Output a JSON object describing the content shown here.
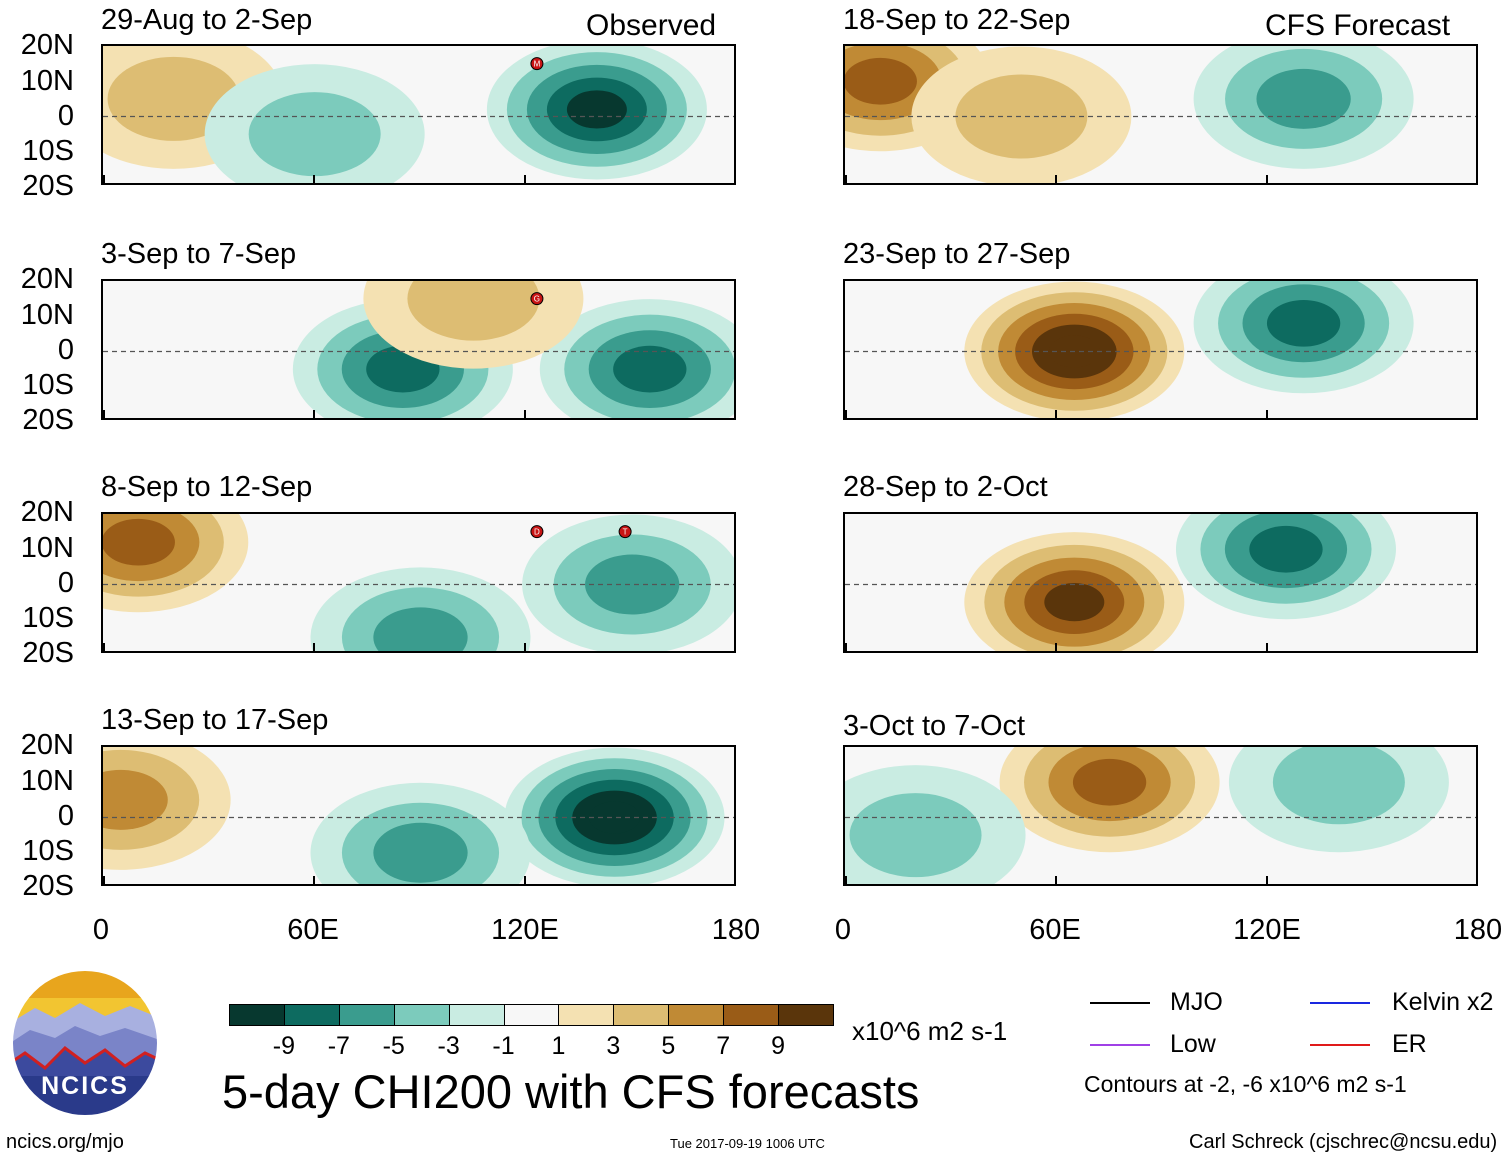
{
  "chart_data": {
    "type": "heatmap",
    "title": "5-day CHI200 with CFS forecasts",
    "units": "x10^6 m2 s-1",
    "x_ticks": [
      "0",
      "60E",
      "120E",
      "180"
    ],
    "y_ticks": [
      "20N",
      "10N",
      "0",
      "10S",
      "20S"
    ],
    "xlim": [
      0,
      180
    ],
    "ylim": [
      -20,
      20
    ],
    "colorbar": {
      "labels": [
        "-9",
        "-7",
        "-5",
        "-3",
        "-1",
        "1",
        "3",
        "5",
        "7",
        "9"
      ],
      "colors": [
        "#07382f",
        "#0d6b60",
        "#3a9c8e",
        "#7ccbbc",
        "#c9ece2",
        "#f7f7f7",
        "#f4e1b2",
        "#ddbd73",
        "#c08a35",
        "#9a5c17",
        "#5a350b"
      ]
    },
    "column_headers": {
      "left": "Observed",
      "right": "CFS Forecast"
    },
    "panels": [
      {
        "period": "29-Aug to 2-Sep",
        "column": "Observed",
        "storms": [
          "M"
        ],
        "anomalies": [
          {
            "lon": 140,
            "lat": 2,
            "value": -9
          },
          {
            "lon": 20,
            "lat": 5,
            "value": 2
          },
          {
            "lon": 60,
            "lat": -5,
            "value": -3
          }
        ]
      },
      {
        "period": "3-Sep to 7-Sep",
        "column": "Observed",
        "storms": [
          "G"
        ],
        "anomalies": [
          {
            "lon": 85,
            "lat": -5,
            "value": -7
          },
          {
            "lon": 155,
            "lat": -5,
            "value": -6
          },
          {
            "lon": 105,
            "lat": 15,
            "value": 2
          }
        ]
      },
      {
        "period": "8-Sep to 12-Sep",
        "column": "Observed",
        "storms": [
          "D",
          "T"
        ],
        "anomalies": [
          {
            "lon": 10,
            "lat": 12,
            "value": 6
          },
          {
            "lon": 90,
            "lat": -15,
            "value": -5
          },
          {
            "lon": 150,
            "lat": 0,
            "value": -4
          }
        ]
      },
      {
        "period": "13-Sep to 17-Sep",
        "column": "Observed",
        "storms": [],
        "anomalies": [
          {
            "lon": 145,
            "lat": 0,
            "value": -10
          },
          {
            "lon": 5,
            "lat": 5,
            "value": 5
          },
          {
            "lon": 90,
            "lat": -10,
            "value": -4
          }
        ]
      },
      {
        "period": "18-Sep to 22-Sep",
        "column": "CFS Forecast",
        "storms": [],
        "anomalies": [
          {
            "lon": 10,
            "lat": 10,
            "value": 6
          },
          {
            "lon": 130,
            "lat": 5,
            "value": -5
          },
          {
            "lon": 50,
            "lat": 0,
            "value": 3
          }
        ]
      },
      {
        "period": "23-Sep to 27-Sep",
        "column": "CFS Forecast",
        "storms": [],
        "anomalies": [
          {
            "lon": 65,
            "lat": 0,
            "value": 10
          },
          {
            "lon": 130,
            "lat": 8,
            "value": -7
          }
        ]
      },
      {
        "period": "28-Sep to 2-Oct",
        "column": "CFS Forecast",
        "storms": [],
        "anomalies": [
          {
            "lon": 65,
            "lat": -5,
            "value": 8
          },
          {
            "lon": 125,
            "lat": 10,
            "value": -6
          }
        ]
      },
      {
        "period": "3-Oct to 7-Oct",
        "column": "CFS Forecast",
        "storms": [],
        "anomalies": [
          {
            "lon": 75,
            "lat": 10,
            "value": 6
          },
          {
            "lon": 20,
            "lat": -5,
            "value": -2
          },
          {
            "lon": 140,
            "lat": 10,
            "value": -3
          }
        ]
      }
    ],
    "legend": [
      {
        "label": "MJO",
        "color": "#000000"
      },
      {
        "label": "Kelvin x2",
        "color": "#1a28e0"
      },
      {
        "label": "Low",
        "color": "#a040e6"
      },
      {
        "label": "ER",
        "color": "#e01a1a"
      }
    ],
    "contour_note": "Contours at -2, -6 x10^6 m2 s-1"
  },
  "footer": {
    "logo_text": "NCICS",
    "url": "ncics.org/mjo",
    "timestamp": "Tue 2017-09-19 1006 UTC",
    "author": "Carl Schreck (cjschrec@ncsu.edu)"
  }
}
